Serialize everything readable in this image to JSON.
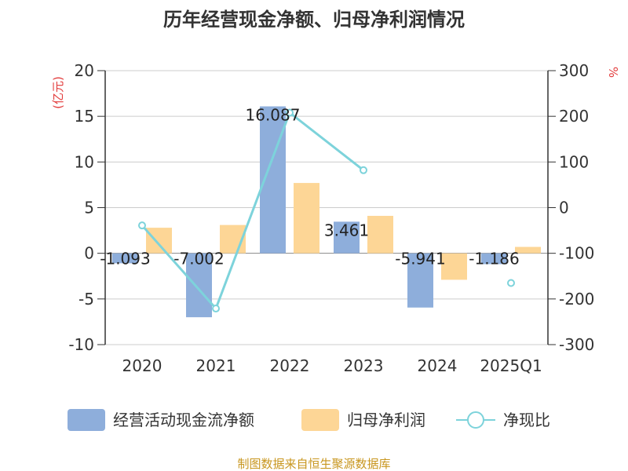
{
  "chart_data": {
    "type": "bar+line",
    "title": "历年经营现金净额、归母净利润情况",
    "categories": [
      "2020",
      "2021",
      "2022",
      "2023",
      "2024",
      "2025Q1"
    ],
    "left_axis": {
      "unit": "(亿元)",
      "min": -10,
      "max": 20,
      "step": 5,
      "ticks": [
        "20",
        "15",
        "10",
        "5",
        "0",
        "-5",
        "-10"
      ]
    },
    "right_axis": {
      "unit": "%",
      "min": -300,
      "max": 300,
      "step": 100,
      "ticks": [
        "300",
        "200",
        "100",
        "0",
        "-100",
        "-200",
        "-300"
      ]
    },
    "series": [
      {
        "name": "经营活动现金流净额",
        "type": "bar",
        "axis": "left",
        "color": "#8eaedb",
        "values": [
          -1.093,
          -7.002,
          16.087,
          3.461,
          -5.941,
          -1.186
        ],
        "labels": [
          "-1.093",
          "-7.002",
          "16.087",
          "3.461",
          "-5.941",
          "-1.186"
        ]
      },
      {
        "name": "归母净利润",
        "type": "bar",
        "axis": "left",
        "color": "#fdd696",
        "values": [
          2.8,
          3.1,
          7.7,
          4.1,
          -2.9,
          0.7
        ]
      },
      {
        "name": "净现比",
        "type": "line",
        "axis": "right",
        "color": "#7dd3db",
        "values": [
          -39,
          -221,
          208,
          82,
          null,
          -165
        ]
      }
    ],
    "legend_position": "bottom",
    "source": "制图数据来自恒生聚源数据库"
  }
}
